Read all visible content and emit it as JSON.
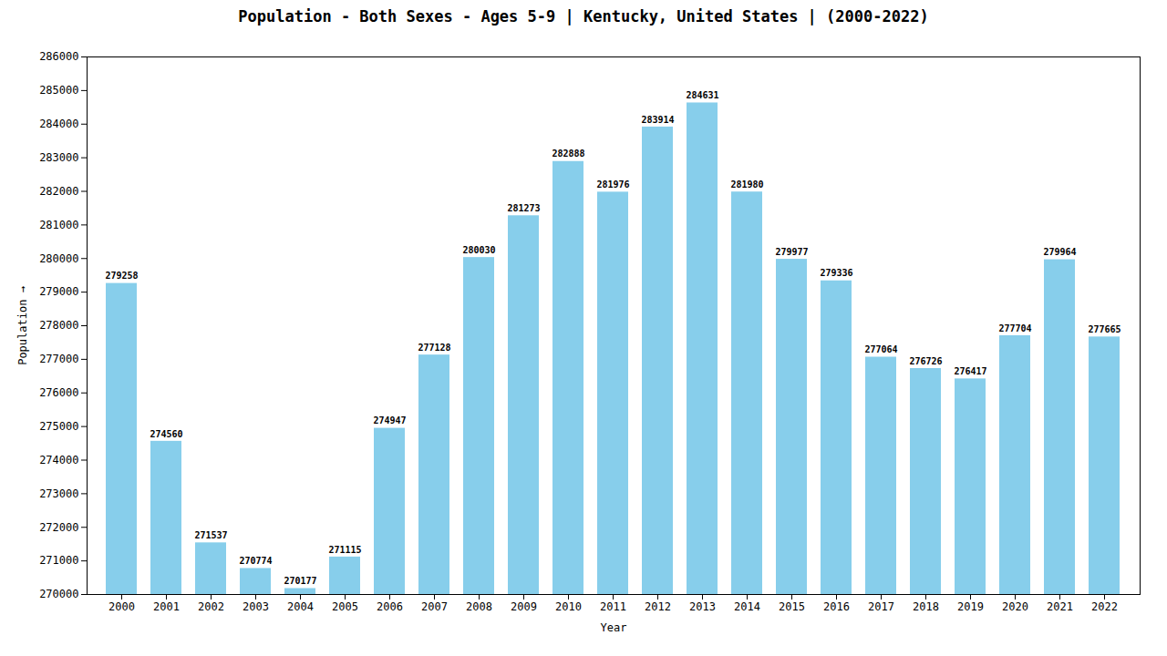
{
  "chart_data": {
    "type": "bar",
    "title": "Population - Both Sexes - Ages 5-9 | Kentucky, United States |  (2000-2022)",
    "xlabel": "Year",
    "ylabel": "Population",
    "categories": [
      "2000",
      "2001",
      "2002",
      "2003",
      "2004",
      "2005",
      "2006",
      "2007",
      "2008",
      "2009",
      "2010",
      "2011",
      "2012",
      "2013",
      "2014",
      "2015",
      "2016",
      "2017",
      "2018",
      "2019",
      "2020",
      "2021",
      "2022"
    ],
    "values": [
      279258,
      274560,
      271537,
      270774,
      270177,
      271115,
      274947,
      277128,
      280030,
      281273,
      282888,
      281976,
      283914,
      284631,
      281980,
      279977,
      279336,
      277064,
      276726,
      276417,
      277704,
      279964,
      277665
    ],
    "color": "#87CEEB",
    "ylim": [
      270000,
      286000
    ],
    "yticks": [
      270000,
      271000,
      272000,
      273000,
      274000,
      275000,
      276000,
      277000,
      278000,
      279000,
      280000,
      281000,
      282000,
      283000,
      284000,
      285000,
      286000
    ],
    "grid": false,
    "data_labels": true
  }
}
